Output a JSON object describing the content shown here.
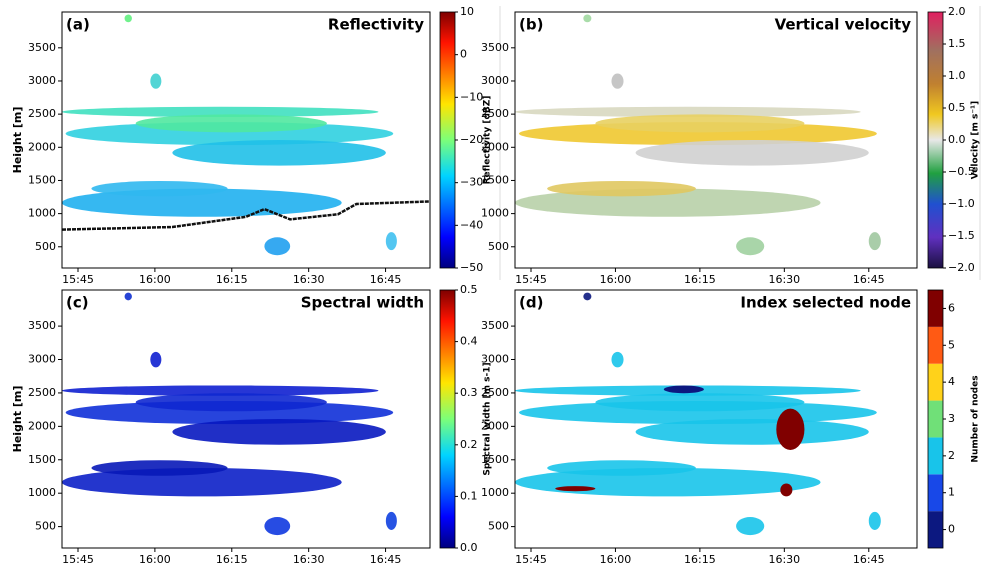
{
  "chart_data": [
    {
      "type": "heatmap",
      "panel_label": "(a)",
      "title": "Reflectivity",
      "y_label": "Height [m]",
      "ylim": [
        180,
        4040
      ],
      "yticks": [
        500,
        1000,
        1500,
        2000,
        2500,
        3000,
        3500
      ],
      "xticks": [
        "15:45",
        "16:00",
        "16:15",
        "16:30",
        "16:45"
      ],
      "colorbar": {
        "label": "Reflectivity [dBZ]",
        "colormap": "jet",
        "lim": [
          -50,
          10
        ],
        "ticks": [
          {
            "value": 10,
            "label": "10"
          },
          0,
          {
            "value": -10,
            "label": "−10"
          },
          {
            "value": -20,
            "label": "−20"
          },
          {
            "value": -30,
            "label": "−30"
          },
          {
            "value": -40,
            "label": "−40"
          },
          {
            "value": -50,
            "label": "−50"
          }
        ]
      }
    },
    {
      "type": "heatmap",
      "panel_label": "(b)",
      "title": "Vertical velocity",
      "ylim": [
        180,
        4040
      ],
      "yticks": [
        500,
        1000,
        1500,
        2000,
        2500,
        3000,
        3500
      ],
      "xticks": [
        "15:45",
        "16:00",
        "16:15",
        "16:30",
        "16:45"
      ],
      "colorbar": {
        "label": "Velocity [m s⁻¹]",
        "colormap": "diverging",
        "lim": [
          -2,
          2
        ],
        "ticks": [
          {
            "value": 2,
            "label": "2.0"
          },
          {
            "value": 1.5,
            "label": "1.5"
          },
          {
            "value": 1,
            "label": "1.0"
          },
          {
            "value": 0.5,
            "label": "0.5"
          },
          {
            "value": 0,
            "label": "0.0"
          },
          {
            "value": -0.5,
            "label": "−0.5"
          },
          {
            "value": -1,
            "label": "−1.0"
          },
          {
            "value": -1.5,
            "label": "−1.5"
          },
          {
            "value": -2,
            "label": "−2.0"
          }
        ]
      }
    },
    {
      "type": "heatmap",
      "panel_label": "(c)",
      "title": "Spectral width",
      "y_label": "Height [m]",
      "ylim": [
        180,
        4040
      ],
      "yticks": [
        500,
        1000,
        1500,
        2000,
        2500,
        3000,
        3500
      ],
      "xticks": [
        "15:45",
        "16:00",
        "16:15",
        "16:30",
        "16:45"
      ],
      "colorbar": {
        "label": "Spectral width [m s-1]",
        "colormap": "jet",
        "lim": [
          0,
          0.5
        ],
        "ticks": [
          {
            "value": 0.5,
            "label": "0.5"
          },
          0.4,
          0.3,
          0.2,
          0.1,
          {
            "value": 0,
            "label": "0.0"
          }
        ]
      }
    },
    {
      "type": "heatmap",
      "panel_label": "(d)",
      "title": "Index selected node",
      "ylim": [
        180,
        4040
      ],
      "yticks": [
        500,
        1000,
        1500,
        2000,
        2500,
        3000,
        3500
      ],
      "xticks": [
        "15:45",
        "16:00",
        "16:15",
        "16:30",
        "16:45"
      ],
      "colorbar": {
        "label": "Number of nodes",
        "colormap": "discrete",
        "lim": [
          -0.5,
          6.5
        ],
        "colors": [
          "#0c1880",
          "#1848e8",
          "#18c4ea",
          "#70e078",
          "#ffd21a",
          "#ff5a14",
          "#800000"
        ],
        "ticks": [
          0,
          1,
          2,
          3,
          4,
          5,
          6
        ]
      }
    }
  ]
}
